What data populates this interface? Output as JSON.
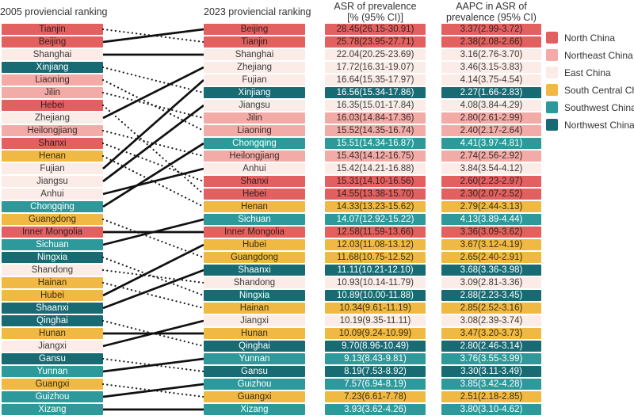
{
  "chart_data": {
    "type": "table",
    "title": "",
    "description": "Slope (bump) chart linking 2005 and 2023 provincial rankings with ASR of prevalence and AAPC values; solid connector line = rank improved or unchanged, dotted connector line = rank declined",
    "columns": {
      "col_2005": "2005 proviencial ranking",
      "col_2023": "2023 proviencial ranking",
      "asr_line1": "ASR of prevalence",
      "asr_line2": "[% (95% CI)]",
      "aapc_line1": "AAPC in ASR of",
      "aapc_line2": "prevalence (95% CI)"
    },
    "region_colors": {
      "north": "#E26060",
      "northeast": "#F2ABA7",
      "east": "#FBECE7",
      "south_central": "#F0B944",
      "southwest": "#2D999B",
      "northwest": "#186A73"
    },
    "region_text_colors": {
      "north": "#38201f",
      "northeast": "#3b2b29",
      "east": "#3b3b3b",
      "south_central": "#3b2e0e",
      "southwest": "#ffffff",
      "northwest": "#ffffff"
    },
    "legend": [
      {
        "label": "North China",
        "region": "north"
      },
      {
        "label": "Northeast China",
        "region": "northeast"
      },
      {
        "label": "East China",
        "region": "east"
      },
      {
        "label": "South Central China",
        "region": "south_central"
      },
      {
        "label": "Southwest China",
        "region": "southwest"
      },
      {
        "label": "Northwest China",
        "region": "northwest"
      }
    ],
    "ranking_2005": [
      {
        "name": "Tianjin",
        "region": "north"
      },
      {
        "name": "Beijing",
        "region": "north"
      },
      {
        "name": "Shanghai",
        "region": "east"
      },
      {
        "name": "Xinjiang",
        "region": "northwest"
      },
      {
        "name": "Liaoning",
        "region": "northeast"
      },
      {
        "name": "Jilin",
        "region": "northeast"
      },
      {
        "name": "Hebei",
        "region": "north"
      },
      {
        "name": "Zhejiang",
        "region": "east"
      },
      {
        "name": "Heilongjiang",
        "region": "northeast"
      },
      {
        "name": "Shanxi",
        "region": "north"
      },
      {
        "name": "Henan",
        "region": "south_central"
      },
      {
        "name": "Fujian",
        "region": "east"
      },
      {
        "name": "Jiangsu",
        "region": "east"
      },
      {
        "name": "Anhui",
        "region": "east"
      },
      {
        "name": "Chongqing",
        "region": "southwest"
      },
      {
        "name": "Guangdong",
        "region": "south_central"
      },
      {
        "name": "Inner Mongolia",
        "region": "north"
      },
      {
        "name": "Sichuan",
        "region": "southwest"
      },
      {
        "name": "Ningxia",
        "region": "northwest"
      },
      {
        "name": "Shandong",
        "region": "east"
      },
      {
        "name": "Hainan",
        "region": "south_central"
      },
      {
        "name": "Hubei",
        "region": "south_central"
      },
      {
        "name": "Shaanxi",
        "region": "northwest"
      },
      {
        "name": "Qinghai",
        "region": "northwest"
      },
      {
        "name": "Hunan",
        "region": "south_central"
      },
      {
        "name": "Jiangxi",
        "region": "east"
      },
      {
        "name": "Gansu",
        "region": "northwest"
      },
      {
        "name": "Yunnan",
        "region": "southwest"
      },
      {
        "name": "Guangxi",
        "region": "south_central"
      },
      {
        "name": "Guizhou",
        "region": "southwest"
      },
      {
        "name": "Xizang",
        "region": "southwest"
      }
    ],
    "ranking_2023": [
      {
        "name": "Beijing",
        "region": "north",
        "asr": "28.45(26.15-30.91)",
        "aapc": "3.37(2.99-3.72)"
      },
      {
        "name": "Tianjin",
        "region": "north",
        "asr": "25.78(23.95-27.71)",
        "aapc": "2.38(2.08-2.66)"
      },
      {
        "name": "Shanghai",
        "region": "east",
        "asr": "22.04(20.25-23.69)",
        "aapc": "3.16(2.76-3.70)"
      },
      {
        "name": "Zhejiang",
        "region": "east",
        "asr": "17.72(16.31-19.07)",
        "aapc": "3.46(3.15-3.83)"
      },
      {
        "name": "Fujian",
        "region": "east",
        "asr": "16.64(15.35-17.97)",
        "aapc": "4.14(3.75-4.54)"
      },
      {
        "name": "Xinjiang",
        "region": "northwest",
        "asr": "16.56(15.34-17.86)",
        "aapc": "2.27(1.66-2.83)"
      },
      {
        "name": "Jiangsu",
        "region": "east",
        "asr": "16.35(15.01-17.84)",
        "aapc": "4.08(3.84-4.29)"
      },
      {
        "name": "Jilin",
        "region": "northeast",
        "asr": "16.03(14.84-17.36)",
        "aapc": "2.80(2.61-2.99)"
      },
      {
        "name": "Liaoning",
        "region": "northeast",
        "asr": "15.52(14.35-16.74)",
        "aapc": "2.40(2.17-2.64)"
      },
      {
        "name": "Chongqing",
        "region": "southwest",
        "asr": "15.51(14.34-16.87)",
        "aapc": "4.41(3.97-4.81)"
      },
      {
        "name": "Heilongjiang",
        "region": "northeast",
        "asr": "15.43(14.12-16.75)",
        "aapc": "2.74(2.56-2.92)"
      },
      {
        "name": "Anhui",
        "region": "east",
        "asr": "15.42(14.21-16.88)",
        "aapc": "3.84(3.54-4.12)"
      },
      {
        "name": "Shanxi",
        "region": "north",
        "asr": "15.31(14.10-16.56)",
        "aapc": "2.60(2.23-2.97)"
      },
      {
        "name": "Hebei",
        "region": "north",
        "asr": "14.55(13.38-15.70)",
        "aapc": "2.30(2.07-2.52)"
      },
      {
        "name": "Henan",
        "region": "south_central",
        "asr": "14.33(13.23-15.62)",
        "aapc": "2.79(2.44-3.13)"
      },
      {
        "name": "Sichuan",
        "region": "southwest",
        "asr": "14.07(12.92-15.22)",
        "aapc": "4.13(3.89-4.44)"
      },
      {
        "name": "Inner Mongolia",
        "region": "north",
        "asr": "12.58(11.59-13.66)",
        "aapc": "3.36(3.09-3.62)"
      },
      {
        "name": "Hubei",
        "region": "south_central",
        "asr": "12.03(11.08-13.12)",
        "aapc": "3.67(3.12-4.19)"
      },
      {
        "name": "Guangdong",
        "region": "south_central",
        "asr": "11.68(10.75-12.52)",
        "aapc": "2.65(2.40-2.91)"
      },
      {
        "name": "Shaanxi",
        "region": "northwest",
        "asr": "11.11(10.21-12.10)",
        "aapc": "3.68(3.36-3.98)"
      },
      {
        "name": "Shandong",
        "region": "east",
        "asr": "10.93(10.14-11.79)",
        "aapc": "3.09(2.81-3.36)"
      },
      {
        "name": "Ningxia",
        "region": "northwest",
        "asr": "10.89(10.00-11.88)",
        "aapc": "2.88(2.23-3.45)"
      },
      {
        "name": "Hainan",
        "region": "south_central",
        "asr": "10.34(9.61-11.19)",
        "aapc": "2.85(2.52-3.16)"
      },
      {
        "name": "Jiangxi",
        "region": "east",
        "asr": "10.19(9.35-11.11)",
        "aapc": "3.08(2.39-3.74)"
      },
      {
        "name": "Hunan",
        "region": "south_central",
        "asr": "10.09(9.24-10.99)",
        "aapc": "3.47(3.20-3.73)"
      },
      {
        "name": "Qinghai",
        "region": "northwest",
        "asr": "9.70(8.96-10.49)",
        "aapc": "2.80(2.46-3.14)"
      },
      {
        "name": "Yunnan",
        "region": "southwest",
        "asr": "9.13(8.43-9.81)",
        "aapc": "3.76(3.55-3.99)"
      },
      {
        "name": "Gansu",
        "region": "northwest",
        "asr": "8.19(7.53-8.92)",
        "aapc": "3.30(3.11-3.49)"
      },
      {
        "name": "Guizhou",
        "region": "southwest",
        "asr": "7.57(6.94-8.19)",
        "aapc": "3.85(3.42-4.28)"
      },
      {
        "name": "Guangxi",
        "region": "south_central",
        "asr": "7.23(6.61-7.78)",
        "aapc": "2.51(2.18-2.85)"
      },
      {
        "name": "Xizang",
        "region": "southwest",
        "asr": "3.93(3.62-4.26)",
        "aapc": "3.80(3.10-4.62)"
      }
    ]
  }
}
